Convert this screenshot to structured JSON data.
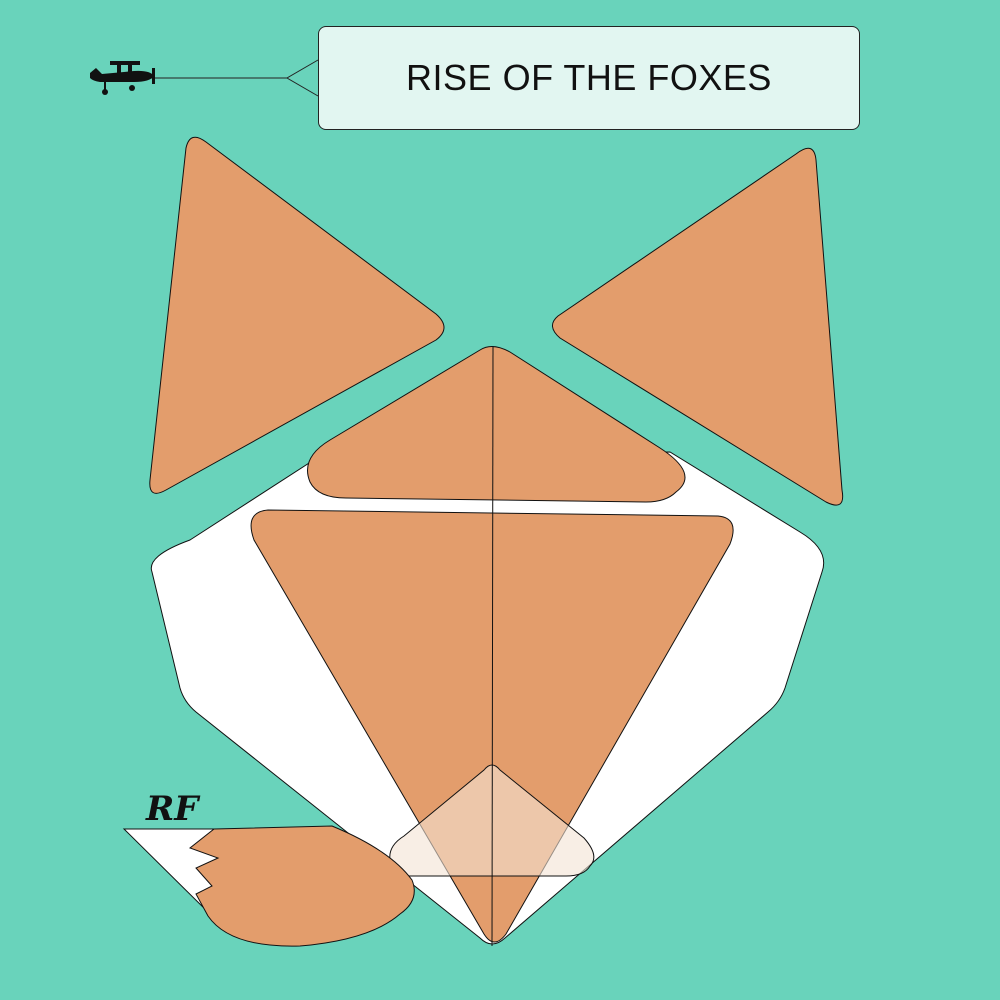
{
  "banner": {
    "title": "RISE OF THE FOXES"
  },
  "logo": {
    "monogram": "RF"
  },
  "icons": {
    "plane": "airplane-icon"
  },
  "colors": {
    "background": "#69d3bb",
    "fur": "#e39d6c",
    "white": "#ffffff",
    "banner_fill": "#e2f6f1",
    "outline": "#111111",
    "plane": "#111111",
    "nose_overlay": "#f4e3d4"
  }
}
